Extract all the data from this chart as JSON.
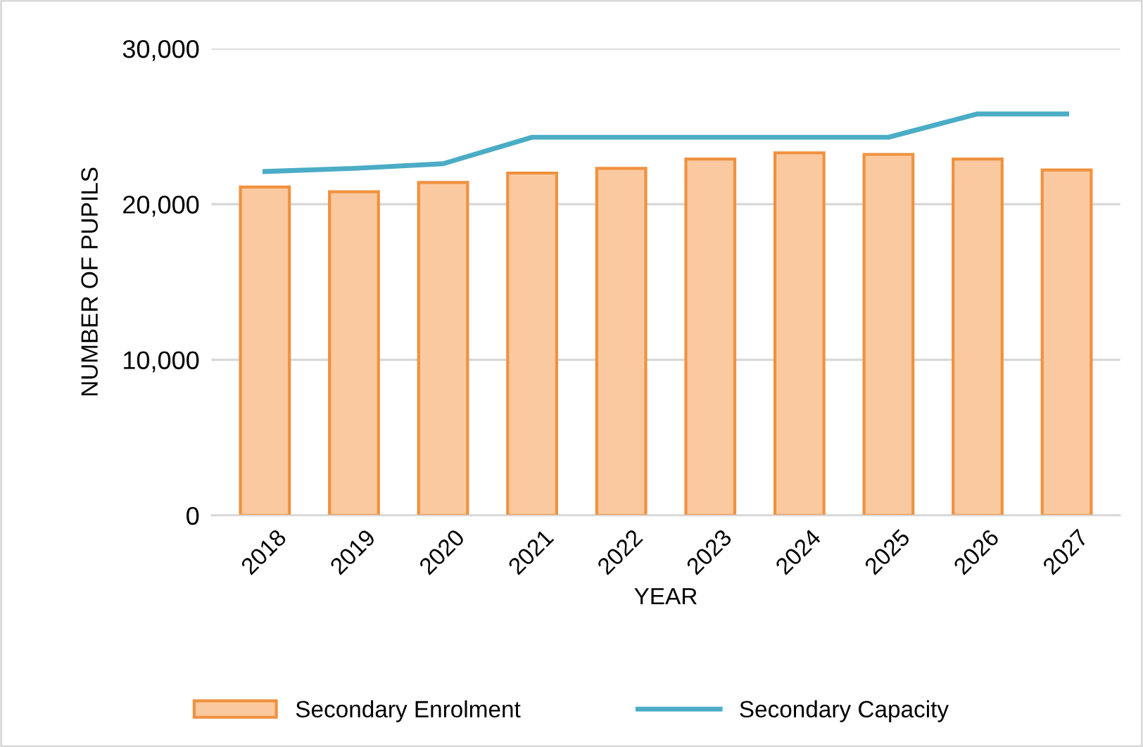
{
  "chart_data": {
    "type": "bar",
    "xlabel": "YEAR",
    "ylabel": "NUMBER OF PUPILS",
    "categories": [
      "2018",
      "2019",
      "2020",
      "2021",
      "2022",
      "2023",
      "2024",
      "2025",
      "2026",
      "2027"
    ],
    "series": [
      {
        "name": "Secondary Enrolment",
        "color": "#fbc9a0",
        "values": [
          21100,
          20800,
          21400,
          22000,
          22300,
          22900,
          23300,
          23200,
          22900,
          22200
        ]
      },
      {
        "name": "Secondary Capacity",
        "type": "line",
        "color": "#4bacc6",
        "values": [
          22100,
          22300,
          22600,
          24300,
          24300,
          24300,
          24300,
          24300,
          25800,
          25800
        ]
      }
    ],
    "ylim": [
      0,
      30000
    ],
    "yticks": [
      {
        "value": 0,
        "label": "0"
      },
      {
        "value": 10000,
        "label": "10,000"
      },
      {
        "value": 20000,
        "label": "20,000"
      },
      {
        "value": 30000,
        "label": "30,000"
      }
    ],
    "grid": "y",
    "legend": "bottom",
    "marker": "none"
  }
}
